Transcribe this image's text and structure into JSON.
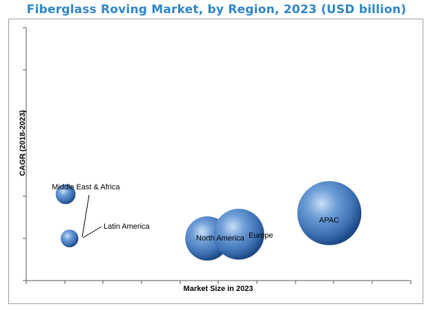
{
  "chart_data": {
    "type": "bubble",
    "title": "Fiberglass Roving Market, by Region, 2023 (USD billion)",
    "xlabel": "Market Size in 2023",
    "ylabel": "CAGR (2018-2023)",
    "tick_labels_shown": false,
    "grid": false,
    "legend": "none",
    "series": [
      {
        "name": "Middle East & Africa",
        "x": 1.0,
        "y": 2.05,
        "size": 0.45
      },
      {
        "name": "Latin America",
        "x": 1.1,
        "y": 1.0,
        "size": 0.4
      },
      {
        "name": "North America",
        "x": 4.6,
        "y": 1.0,
        "size": 1.0
      },
      {
        "name": "Europe",
        "x": 5.4,
        "y": 1.1,
        "size": 1.15
      },
      {
        "name": "APAC",
        "x": 7.7,
        "y": 1.6,
        "size": 1.45
      }
    ],
    "colors": {
      "bubble_light": "#b8d4f2",
      "bubble_mid": "#4f83c4",
      "bubble_dark": "#1d4a86",
      "title": "#2e86c8"
    }
  }
}
